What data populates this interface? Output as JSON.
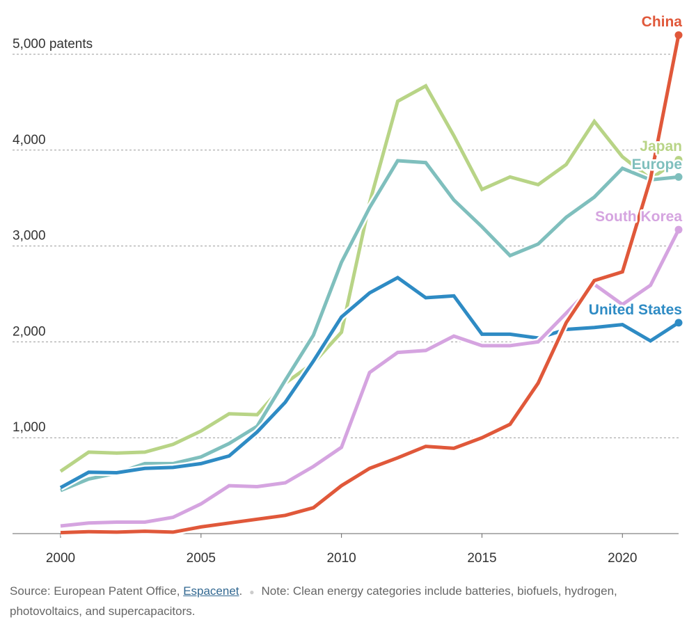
{
  "chart_data": {
    "type": "line",
    "title": "",
    "xlabel": "",
    "ylabel": "",
    "y_unit_label": "patents",
    "xlim": [
      2000,
      2022
    ],
    "ylim": [
      0,
      5000
    ],
    "x_ticks": [
      2000,
      2005,
      2010,
      2015,
      2020
    ],
    "y_ticks": [
      {
        "value": 1000,
        "label": "1,000"
      },
      {
        "value": 2000,
        "label": "2,000"
      },
      {
        "value": 3000,
        "label": "3,000"
      },
      {
        "value": 4000,
        "label": "4,000"
      },
      {
        "value": 5000,
        "label": "5,000 patents"
      }
    ],
    "grid": "horizontal dashed",
    "x": [
      2000,
      2001,
      2002,
      2003,
      2004,
      2005,
      2006,
      2007,
      2008,
      2009,
      2010,
      2011,
      2012,
      2013,
      2014,
      2015,
      2016,
      2017,
      2018,
      2019,
      2020,
      2021,
      2022
    ],
    "series": [
      {
        "name": "Japan",
        "color": "#b8d486",
        "values": [
          650,
          850,
          840,
          850,
          930,
          1070,
          1250,
          1240,
          1570,
          1780,
          2100,
          3450,
          4510,
          4670,
          4150,
          3590,
          3720,
          3640,
          3850,
          4300,
          3930,
          3700,
          3900
        ]
      },
      {
        "name": "Europe",
        "color": "#7fbfbd",
        "values": [
          450,
          570,
          630,
          730,
          730,
          800,
          940,
          1120,
          1600,
          2070,
          2830,
          3400,
          3890,
          3870,
          3480,
          3200,
          2900,
          3020,
          3300,
          3510,
          3810,
          3690,
          3720
        ]
      },
      {
        "name": "United States",
        "color": "#2e8bc4",
        "values": [
          480,
          640,
          635,
          680,
          690,
          730,
          810,
          1060,
          1370,
          1800,
          2260,
          2510,
          2670,
          2460,
          2480,
          2080,
          2080,
          2040,
          2130,
          2150,
          2180,
          2010,
          2200
        ]
      },
      {
        "name": "South Korea",
        "color": "#d5a4e0",
        "values": [
          80,
          110,
          120,
          120,
          170,
          310,
          500,
          490,
          530,
          700,
          900,
          1680,
          1890,
          1910,
          2060,
          1960,
          1960,
          2000,
          2300,
          2600,
          2390,
          2590,
          3170
        ]
      },
      {
        "name": "China",
        "color": "#e0583a",
        "values": [
          10,
          20,
          15,
          25,
          15,
          70,
          110,
          150,
          190,
          270,
          500,
          680,
          790,
          910,
          890,
          1000,
          1140,
          1570,
          2200,
          2640,
          2730,
          3700,
          5200
        ]
      }
    ]
  },
  "footer": {
    "source_prefix": "Source: European Patent Office, ",
    "source_link": "Espacenet",
    "source_suffix": ".",
    "note": "Note: Clean energy categories include batteries, biofuels, hydrogen, photovoltaics, and supercapacitors."
  }
}
